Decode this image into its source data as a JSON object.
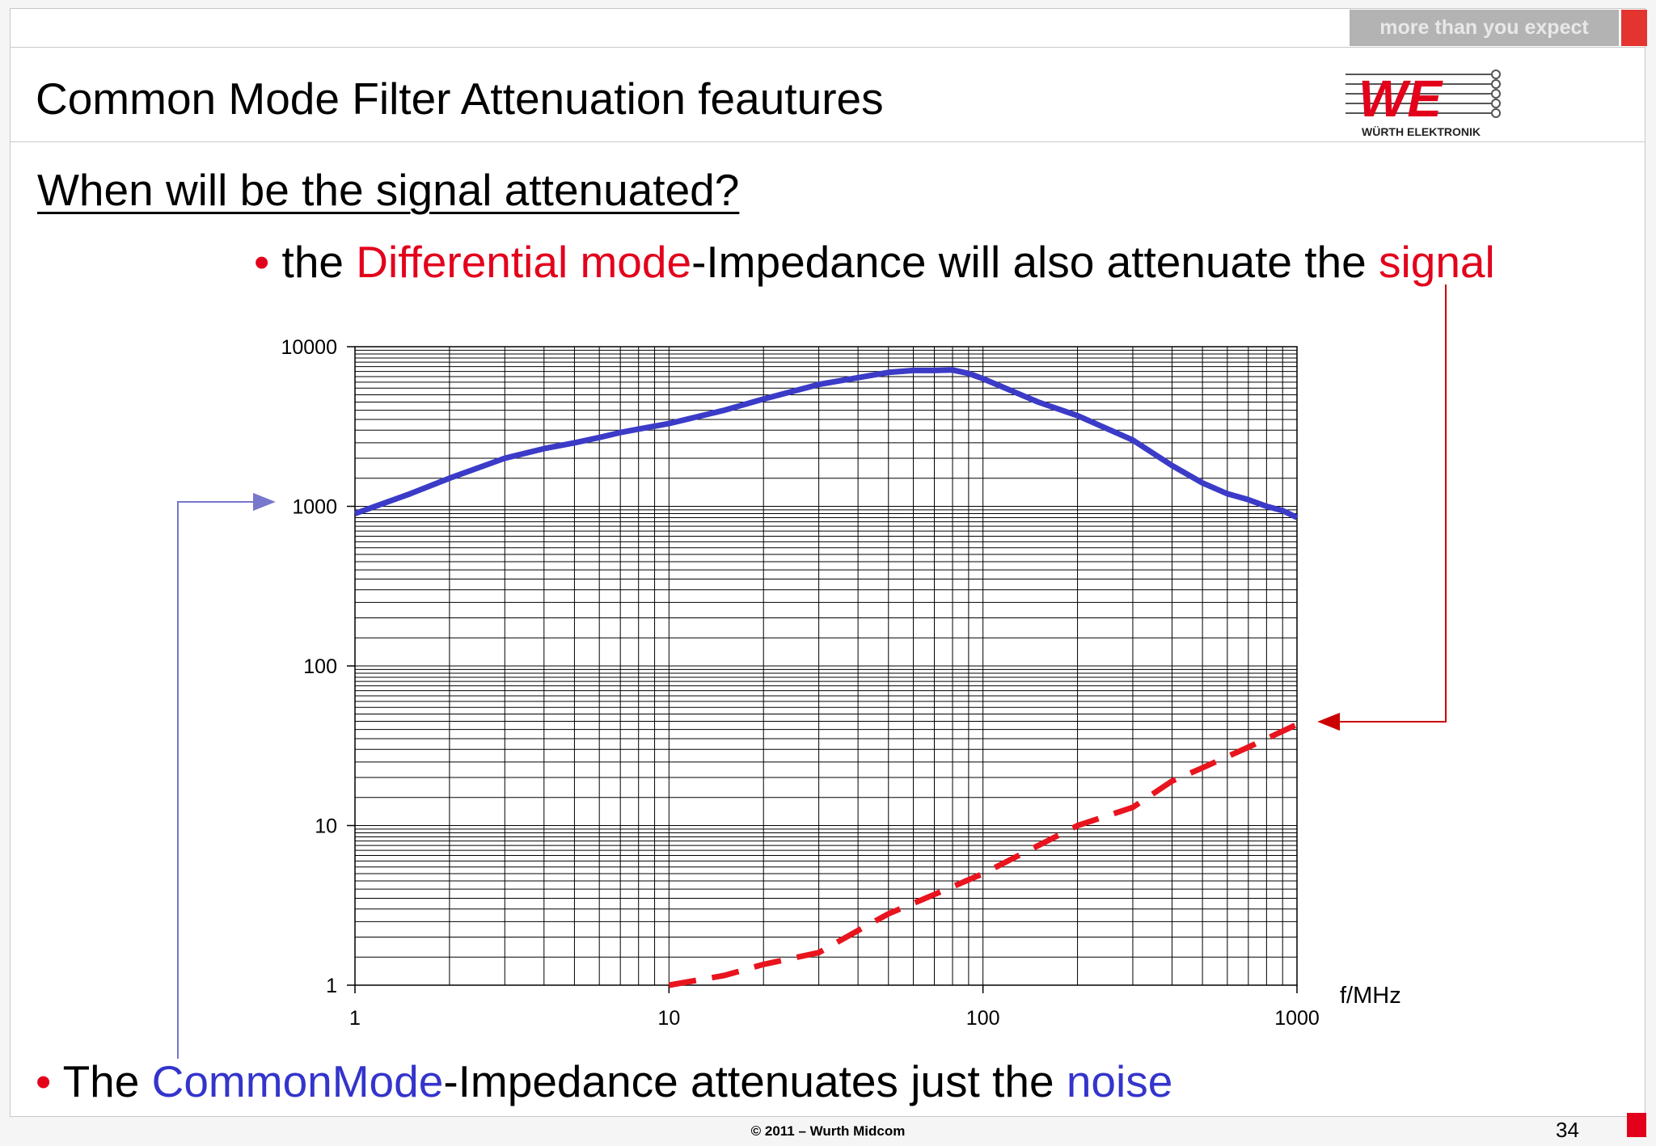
{
  "header": {
    "tagline": "more than you expect",
    "logo_text": "WE",
    "logo_subtext": "WÜRTH ELEKTRONIK"
  },
  "title": "Common Mode Filter Attenuation feautures",
  "question": "When will be the signal attenuated?",
  "bullet1": {
    "marker": "•",
    "part1": "the ",
    "highlight1": "Differential mode",
    "part2": "-Impedance will also attenuate the ",
    "highlight2": "signal"
  },
  "bullet2": {
    "marker": "•",
    "part1": "The ",
    "highlight1": "CommonMode",
    "part2": "-Impedance attenuates just the ",
    "highlight2": "noise"
  },
  "footer": "© 2011 – Wurth Midcom",
  "page_number": "34",
  "colors": {
    "red": "#e3001b",
    "blue": "#3434cc",
    "common_mode_line": "#3b3bc8",
    "differential_line": "#e8141e"
  },
  "chart_data": {
    "type": "line",
    "x_scale": "log",
    "y_scale": "log",
    "xlim": [
      1,
      1000
    ],
    "ylim": [
      1,
      10000
    ],
    "x_ticks": [
      "1",
      "10",
      "100",
      "1000"
    ],
    "y_ticks": [
      "1",
      "10",
      "100",
      "1000",
      "10000"
    ],
    "xlabel": "f/MHz",
    "ylabel": "",
    "grid": true,
    "legend": "none",
    "series": [
      {
        "style": "solid",
        "x": [
          1,
          1.5,
          2,
          3,
          4,
          5,
          6,
          7,
          8,
          10,
          15,
          20,
          30,
          40,
          50,
          60,
          70,
          80,
          90,
          100,
          150,
          200,
          300,
          400,
          500,
          600,
          700,
          800,
          900,
          1000
        ],
        "y": [
          900,
          1200,
          1500,
          2000,
          2300,
          2500,
          2700,
          2900,
          3050,
          3300,
          4000,
          4700,
          5800,
          6400,
          6900,
          7100,
          7100,
          7150,
          6800,
          6300,
          4500,
          3700,
          2600,
          1800,
          1400,
          1200,
          1100,
          1000,
          940,
          850
        ]
      },
      {
        "style": "dashed",
        "x": [
          10,
          15,
          20,
          30,
          40,
          50,
          70,
          100,
          150,
          200,
          300,
          400,
          500,
          700,
          1000
        ],
        "y": [
          1.0,
          1.15,
          1.35,
          1.6,
          2.2,
          2.8,
          3.7,
          5.0,
          7.5,
          10,
          13,
          19,
          23,
          31,
          43
        ]
      }
    ]
  }
}
